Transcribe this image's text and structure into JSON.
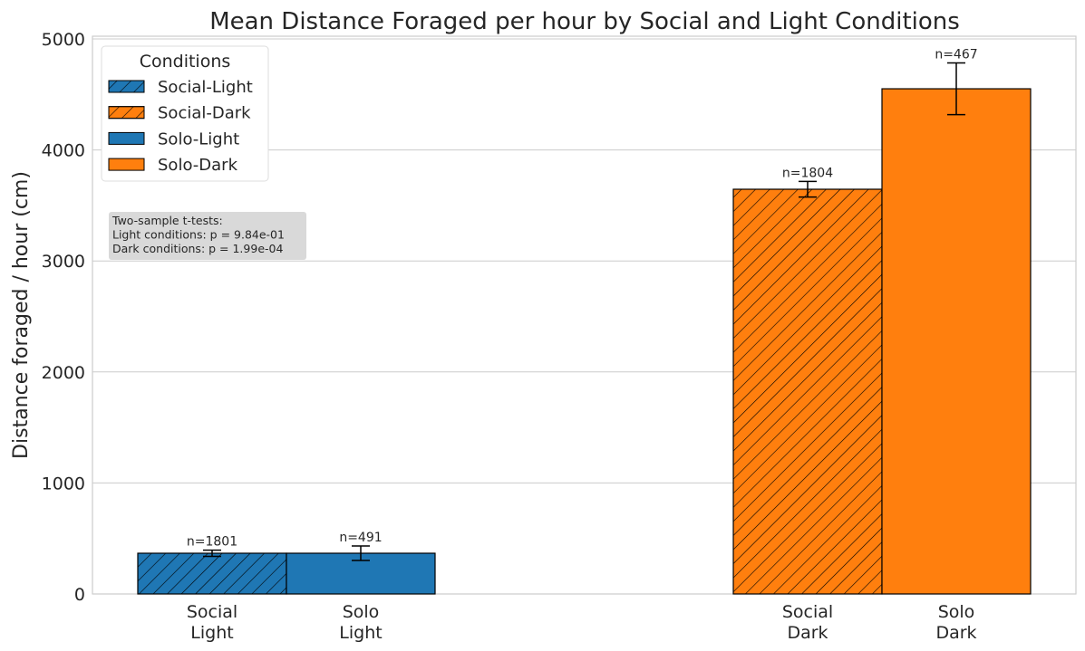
{
  "chart_data": {
    "type": "bar",
    "title": "Mean Distance Foraged per hour by Social and Light Conditions",
    "xlabel": "",
    "ylabel": "Distance foraged / hour (cm)",
    "ylim": [
      0,
      5000
    ],
    "yticks": [
      0,
      1000,
      2000,
      3000,
      4000,
      5000
    ],
    "grid": "y",
    "categories": [
      "Social\nLight",
      "Solo\nLight",
      "Social\nDark",
      "Solo\nDark"
    ],
    "bars": [
      {
        "name": "Social-Light",
        "value": 367,
        "error": 28,
        "n_label": "n=1801",
        "color": "#1f77b4",
        "hatch": true
      },
      {
        "name": "Solo-Light",
        "value": 367,
        "error": 65,
        "n_label": "n=491",
        "color": "#1f77b4",
        "hatch": false
      },
      {
        "name": "Social-Dark",
        "value": 3646,
        "error": 70,
        "n_label": "n=1804",
        "color": "#ff7f0e",
        "hatch": true
      },
      {
        "name": "Solo-Dark",
        "value": 4551,
        "error": 233,
        "n_label": "n=467",
        "color": "#ff7f0e",
        "hatch": false
      }
    ],
    "legend": {
      "title": "Conditions",
      "placement": "top-left",
      "entries": [
        {
          "label": "Social-Light",
          "color": "#1f77b4",
          "hatch": true
        },
        {
          "label": "Social-Dark",
          "color": "#ff7f0e",
          "hatch": true
        },
        {
          "label": "Solo-Light",
          "color": "#1f77b4",
          "hatch": false
        },
        {
          "label": "Solo-Dark",
          "color": "#ff7f0e",
          "hatch": false
        }
      ]
    },
    "annotation": [
      "Two-sample t-tests:",
      "Light conditions: p = 9.84e-01",
      "Dark conditions: p = 1.99e-04"
    ]
  }
}
